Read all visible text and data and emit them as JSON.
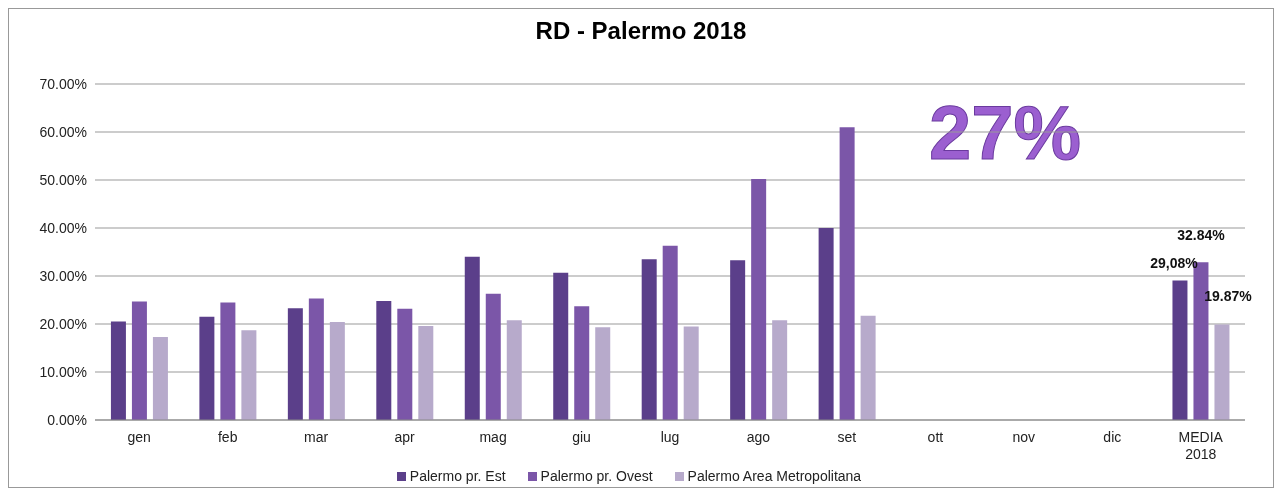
{
  "chart_data": {
    "type": "bar",
    "title": "RD - Palermo 2018",
    "categories": [
      "gen",
      "feb",
      "mar",
      "apr",
      "mag",
      "giu",
      "lug",
      "ago",
      "set",
      "ott",
      "nov",
      "dic",
      "MEDIA 2018"
    ],
    "series": [
      {
        "name": "Palermo pr. Est",
        "color": "#5b3f8a",
        "values": [
          20.5,
          21.5,
          23.3,
          24.8,
          34.0,
          30.7,
          33.5,
          33.3,
          40.0,
          null,
          null,
          null,
          29.08
        ],
        "value_labels": [
          null,
          null,
          null,
          null,
          null,
          null,
          null,
          null,
          null,
          null,
          null,
          null,
          "29,08%"
        ]
      },
      {
        "name": "Palermo pr. Ovest",
        "color": "#7b56a8",
        "values": [
          24.7,
          24.5,
          25.3,
          23.2,
          26.3,
          23.7,
          36.3,
          50.2,
          61.0,
          null,
          null,
          null,
          32.84
        ],
        "value_labels": [
          null,
          null,
          null,
          null,
          null,
          null,
          null,
          null,
          null,
          null,
          null,
          null,
          "32.84%"
        ]
      },
      {
        "name": "Palermo Area Metropolitana",
        "color": "#b7aacb",
        "values": [
          17.3,
          18.7,
          20.4,
          19.6,
          20.8,
          19.3,
          19.5,
          20.8,
          21.7,
          null,
          null,
          null,
          19.87
        ],
        "value_labels": [
          null,
          null,
          null,
          null,
          null,
          null,
          null,
          null,
          null,
          null,
          null,
          null,
          "19.87%"
        ]
      }
    ],
    "ylim": [
      0,
      70
    ],
    "yticks": [
      {
        "value": 0,
        "label": "0.00%"
      },
      {
        "value": 10,
        "label": "10.00%"
      },
      {
        "value": 20,
        "label": "20.00%"
      },
      {
        "value": 30,
        "label": "30.00%"
      },
      {
        "value": 40,
        "label": "40.00%"
      },
      {
        "value": 50,
        "label": "50.00%"
      },
      {
        "value": 60,
        "label": "60.00%"
      },
      {
        "value": 70,
        "label": "70.00%"
      }
    ],
    "grid": "y",
    "legend": "bottom",
    "annotations": [
      "27%"
    ]
  }
}
